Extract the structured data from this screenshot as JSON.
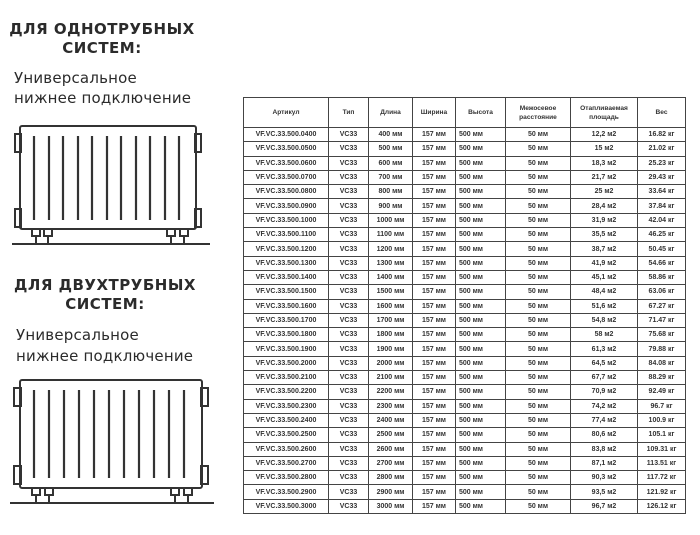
{
  "section_one": {
    "title_line1": "ДЛЯ ОДНОТРУБНЫХ",
    "title_line2": "СИСТЕМ:",
    "subtitle_line1": "Универсальное",
    "subtitle_line2": "нижнее подключение"
  },
  "section_two": {
    "title_line1": "ДЛЯ ДВУХТРУБНЫХ",
    "title_line2": "СИСТЕМ:",
    "subtitle_line1": "Универсальное",
    "subtitle_line2": "нижнее подключение"
  },
  "table": {
    "headers": [
      "Артикул",
      "Тип",
      "Длина",
      "Ширина",
      "Высота",
      "Межосевое расстояние",
      "Отапливаемая площадь",
      "Вес"
    ],
    "rows": [
      [
        "VF.VC.33.500.0400",
        "VC33",
        "400 мм",
        "157 мм",
        "500 мм",
        "50 мм",
        "12,2 м2",
        "16.82 кг"
      ],
      [
        "VF.VC.33.500.0500",
        "VC33",
        "500 мм",
        "157 мм",
        "500 мм",
        "50 мм",
        "15 м2",
        "21.02 кг"
      ],
      [
        "VF.VC.33.500.0600",
        "VC33",
        "600 мм",
        "157 мм",
        "500 мм",
        "50 мм",
        "18,3 м2",
        "25.23 кг"
      ],
      [
        "VF.VC.33.500.0700",
        "VC33",
        "700 мм",
        "157 мм",
        "500 мм",
        "50 мм",
        "21,7 м2",
        "29.43 кг"
      ],
      [
        "VF.VC.33.500.0800",
        "VC33",
        "800 мм",
        "157 мм",
        "500 мм",
        "50 мм",
        "25 м2",
        "33.64 кг"
      ],
      [
        "VF.VC.33.500.0900",
        "VC33",
        "900 мм",
        "157 мм",
        "500 мм",
        "50 мм",
        "28,4 м2",
        "37.84 кг"
      ],
      [
        "VF.VC.33.500.1000",
        "VC33",
        "1000 мм",
        "157 мм",
        "500 мм",
        "50 мм",
        "31,9 м2",
        "42.04 кг"
      ],
      [
        "VF.VC.33.500.1100",
        "VC33",
        "1100 мм",
        "157 мм",
        "500 мм",
        "50 мм",
        "35,5 м2",
        "46.25 кг"
      ],
      [
        "VF.VC.33.500.1200",
        "VC33",
        "1200 мм",
        "157 мм",
        "500 мм",
        "50 мм",
        "38,7 м2",
        "50.45 кг"
      ],
      [
        "VF.VC.33.500.1300",
        "VC33",
        "1300 мм",
        "157 мм",
        "500 мм",
        "50 мм",
        "41,9 м2",
        "54.66 кг"
      ],
      [
        "VF.VC.33.500.1400",
        "VC33",
        "1400 мм",
        "157 мм",
        "500 мм",
        "50 мм",
        "45,1 м2",
        "58.86 кг"
      ],
      [
        "VF.VC.33.500.1500",
        "VC33",
        "1500 мм",
        "157 мм",
        "500 мм",
        "50 мм",
        "48,4 м2",
        "63.06 кг"
      ],
      [
        "VF.VC.33.500.1600",
        "VC33",
        "1600 мм",
        "157 мм",
        "500 мм",
        "50 мм",
        "51,6 м2",
        "67.27 кг"
      ],
      [
        "VF.VC.33.500.1700",
        "VC33",
        "1700 мм",
        "157 мм",
        "500 мм",
        "50 мм",
        "54,8 м2",
        "71.47 кг"
      ],
      [
        "VF.VC.33.500.1800",
        "VC33",
        "1800 мм",
        "157 мм",
        "500 мм",
        "50 мм",
        "58 м2",
        "75.68 кг"
      ],
      [
        "VF.VC.33.500.1900",
        "VC33",
        "1900 мм",
        "157 мм",
        "500 мм",
        "50 мм",
        "61,3 м2",
        "79.88 кг"
      ],
      [
        "VF.VC.33.500.2000",
        "VC33",
        "2000 мм",
        "157 мм",
        "500 мм",
        "50 мм",
        "64,5 м2",
        "84.08 кг"
      ],
      [
        "VF.VC.33.500.2100",
        "VC33",
        "2100 мм",
        "157 мм",
        "500 мм",
        "50 мм",
        "67,7 м2",
        "88.29 кг"
      ],
      [
        "VF.VC.33.500.2200",
        "VC33",
        "2200 мм",
        "157 мм",
        "500 мм",
        "50 мм",
        "70,9 м2",
        "92.49 кг"
      ],
      [
        "VF.VC.33.500.2300",
        "VC33",
        "2300 мм",
        "157 мм",
        "500 мм",
        "50 мм",
        "74,2 м2",
        "96.7 кг"
      ],
      [
        "VF.VC.33.500.2400",
        "VC33",
        "2400 мм",
        "157 мм",
        "500 мм",
        "50 мм",
        "77,4 м2",
        "100.9 кг"
      ],
      [
        "VF.VC.33.500.2500",
        "VC33",
        "2500 мм",
        "157 мм",
        "500 мм",
        "50 мм",
        "80,6 м2",
        "105.1 кг"
      ],
      [
        "VF.VC.33.500.2600",
        "VC33",
        "2600 мм",
        "157 мм",
        "500 мм",
        "50 мм",
        "83,8 м2",
        "109.31 кг"
      ],
      [
        "VF.VC.33.500.2700",
        "VC33",
        "2700 мм",
        "157 мм",
        "500 мм",
        "50 мм",
        "87,1 м2",
        "113.51 кг"
      ],
      [
        "VF.VC.33.500.2800",
        "VC33",
        "2800 мм",
        "157 мм",
        "500 мм",
        "50 мм",
        "90,3 м2",
        "117.72 кг"
      ],
      [
        "VF.VC.33.500.2900",
        "VC33",
        "2900 мм",
        "157 мм",
        "500 мм",
        "50 мм",
        "93,5 м2",
        "121.92 кг"
      ],
      [
        "VF.VC.33.500.3000",
        "VC33",
        "3000 мм",
        "157 мм",
        "500 мм",
        "50 мм",
        "96,7 м2",
        "126.12 кг"
      ]
    ]
  }
}
